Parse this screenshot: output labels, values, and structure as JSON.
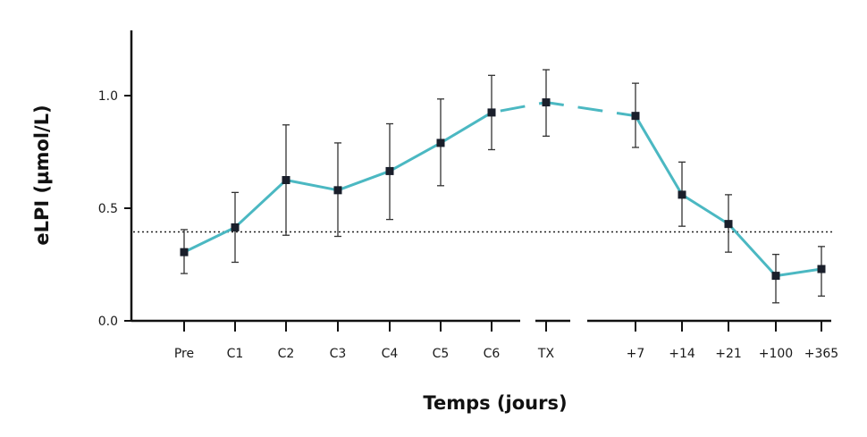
{
  "chart_data": {
    "type": "line",
    "xlabel": "Temps (jours)",
    "ylabel": "eLPI (µmol/L)",
    "categories": [
      "Pre",
      "C1",
      "C2",
      "C3",
      "C4",
      "C5",
      "C6",
      "TX",
      "+7",
      "+14",
      "+21",
      "+100",
      "+365"
    ],
    "ylim": [
      0,
      1.28
    ],
    "yticks": [
      {
        "value": 0.0,
        "label": "0.0"
      },
      {
        "value": 0.5,
        "label": "0.5"
      },
      {
        "value": 1.0,
        "label": "1.0"
      }
    ],
    "series": [
      {
        "values": [
          0.305,
          0.415,
          0.625,
          0.58,
          0.665,
          0.79,
          0.925,
          0.97,
          0.91,
          0.56,
          0.43,
          0.2,
          0.23
        ],
        "error_low": [
          0.21,
          0.26,
          0.38,
          0.375,
          0.45,
          0.6,
          0.76,
          0.82,
          0.77,
          0.42,
          0.305,
          0.08,
          0.11
        ],
        "error_high": [
          0.405,
          0.57,
          0.87,
          0.79,
          0.875,
          0.985,
          1.09,
          1.115,
          1.055,
          0.705,
          0.56,
          0.295,
          0.33
        ]
      }
    ],
    "reference_line": 0.395,
    "axis_breaks": [
      "C6-TX",
      "TX-+7"
    ],
    "colors": {
      "line": "#4bb8c2",
      "marker": "#1a1f2b",
      "axis": "#111111",
      "error_bar": "#333333"
    },
    "grid": false
  }
}
